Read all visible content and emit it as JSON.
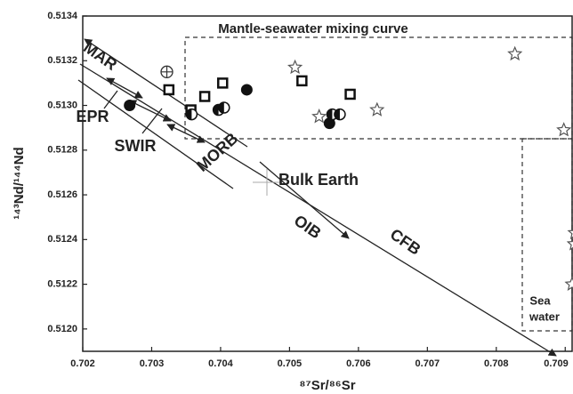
{
  "chart_data": {
    "type": "scatter",
    "title": "Mantle-seawater mixing curve",
    "x_label": "⁸⁷Sr/⁸⁶Sr",
    "y_label": "¹⁴³Nd/¹⁴⁴Nd",
    "xlim": [
      0.702,
      0.7091
    ],
    "ylim": [
      0.5119,
      0.5134
    ],
    "xticks": [
      0.702,
      0.703,
      0.704,
      0.705,
      0.706,
      0.707,
      0.708,
      0.709
    ],
    "yticks": [
      {
        "value": 0.512,
        "label": "0.5120"
      },
      0.5122,
      0.5124,
      0.5126,
      0.5128,
      {
        "value": 0.513,
        "label": "0.5130"
      },
      0.5132,
      0.5134
    ],
    "annotations": [
      "MAR",
      "EPR",
      "SWIR",
      "MORB",
      "Bulk Earth",
      "OIB",
      "CFB",
      "Sea",
      "water"
    ],
    "series": [
      {
        "marker": "filled-circle",
        "color": "#111111",
        "x": [
          0.70268,
          0.70438,
          0.70558
        ],
        "y": [
          0.513,
          0.51307,
          0.51292
        ]
      },
      {
        "marker": "square",
        "color": "#111111",
        "x": [
          0.70325,
          0.70357,
          0.70377,
          0.70403,
          0.70518,
          0.70588
        ],
        "y": [
          0.51307,
          0.51298,
          0.51304,
          0.5131,
          0.51311,
          0.51305
        ]
      },
      {
        "marker": "half-circle",
        "color": "#111111",
        "x": [
          0.70358,
          0.70397,
          0.70405,
          0.70562,
          0.70573
        ],
        "y": [
          0.51296,
          0.51298,
          0.51299,
          0.51296,
          0.51296
        ]
      },
      {
        "marker": "star",
        "color": "#555555",
        "x": [
          0.70508,
          0.70543,
          0.70627,
          0.70827,
          0.70898,
          0.70914,
          0.70913,
          0.7091
        ],
        "y": [
          0.51317,
          0.51295,
          0.51298,
          0.51323,
          0.51289,
          0.51243,
          0.51238,
          0.5122
        ]
      },
      {
        "marker": "crossed-circle",
        "color": "#333333",
        "x": [
          0.70322
        ],
        "y": [
          0.51315
        ]
      }
    ]
  }
}
